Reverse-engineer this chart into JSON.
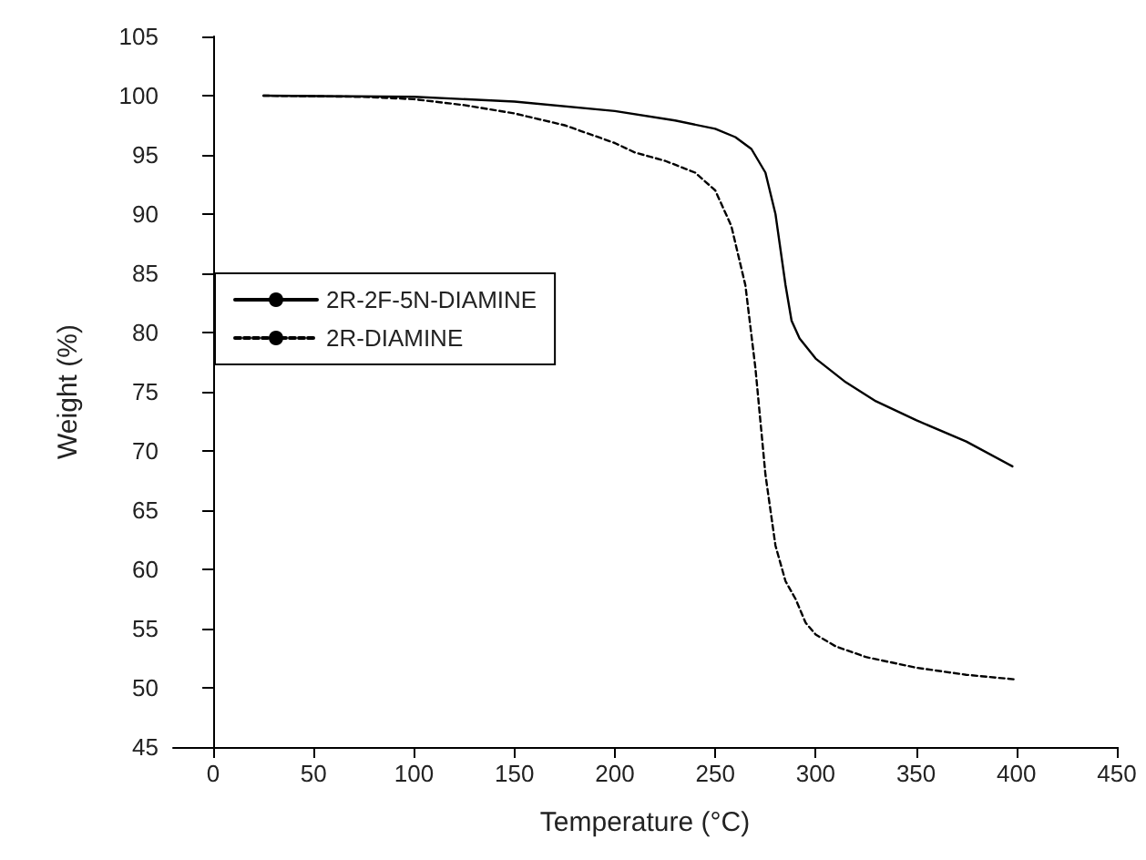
{
  "chart_data": {
    "type": "line",
    "xlabel": "Temperature (°C)",
    "ylabel": "Weight (%)",
    "xlim": [
      -20,
      450
    ],
    "xticks": [
      0,
      50,
      100,
      150,
      200,
      250,
      300,
      350,
      400,
      450
    ],
    "ylim": [
      45,
      105
    ],
    "yticks": [
      45,
      50,
      55,
      60,
      65,
      70,
      75,
      80,
      85,
      90,
      95,
      100,
      105
    ],
    "grid": false,
    "legend": "left",
    "marker": "none",
    "series": [
      {
        "name": "2R-2F-5N-DIAMINE",
        "color": "#000000",
        "line_style": "solid",
        "x": [
          25,
          100,
          150,
          200,
          230,
          250,
          260,
          268,
          275,
          280,
          285,
          288,
          292,
          300,
          315,
          330,
          350,
          375,
          398
        ],
        "values": [
          100,
          99.9,
          99.5,
          98.7,
          97.9,
          97.2,
          96.5,
          95.5,
          93.5,
          90,
          84,
          81,
          79.5,
          77.8,
          75.8,
          74.2,
          72.6,
          70.8,
          68.7
        ]
      },
      {
        "name": "2R-DIAMINE",
        "color": "#000000",
        "line_style": "dashed",
        "x": [
          25,
          75,
          100,
          125,
          150,
          175,
          200,
          210,
          225,
          240,
          250,
          258,
          265,
          270,
          275,
          280,
          285,
          290,
          295,
          300,
          310,
          325,
          350,
          375,
          400
        ],
        "values": [
          100,
          99.9,
          99.7,
          99.2,
          98.5,
          97.5,
          96,
          95.2,
          94.5,
          93.5,
          92,
          89,
          84,
          77,
          68,
          62,
          59,
          57.5,
          55.5,
          54.5,
          53.5,
          52.6,
          51.7,
          51.1,
          50.7
        ]
      }
    ]
  }
}
